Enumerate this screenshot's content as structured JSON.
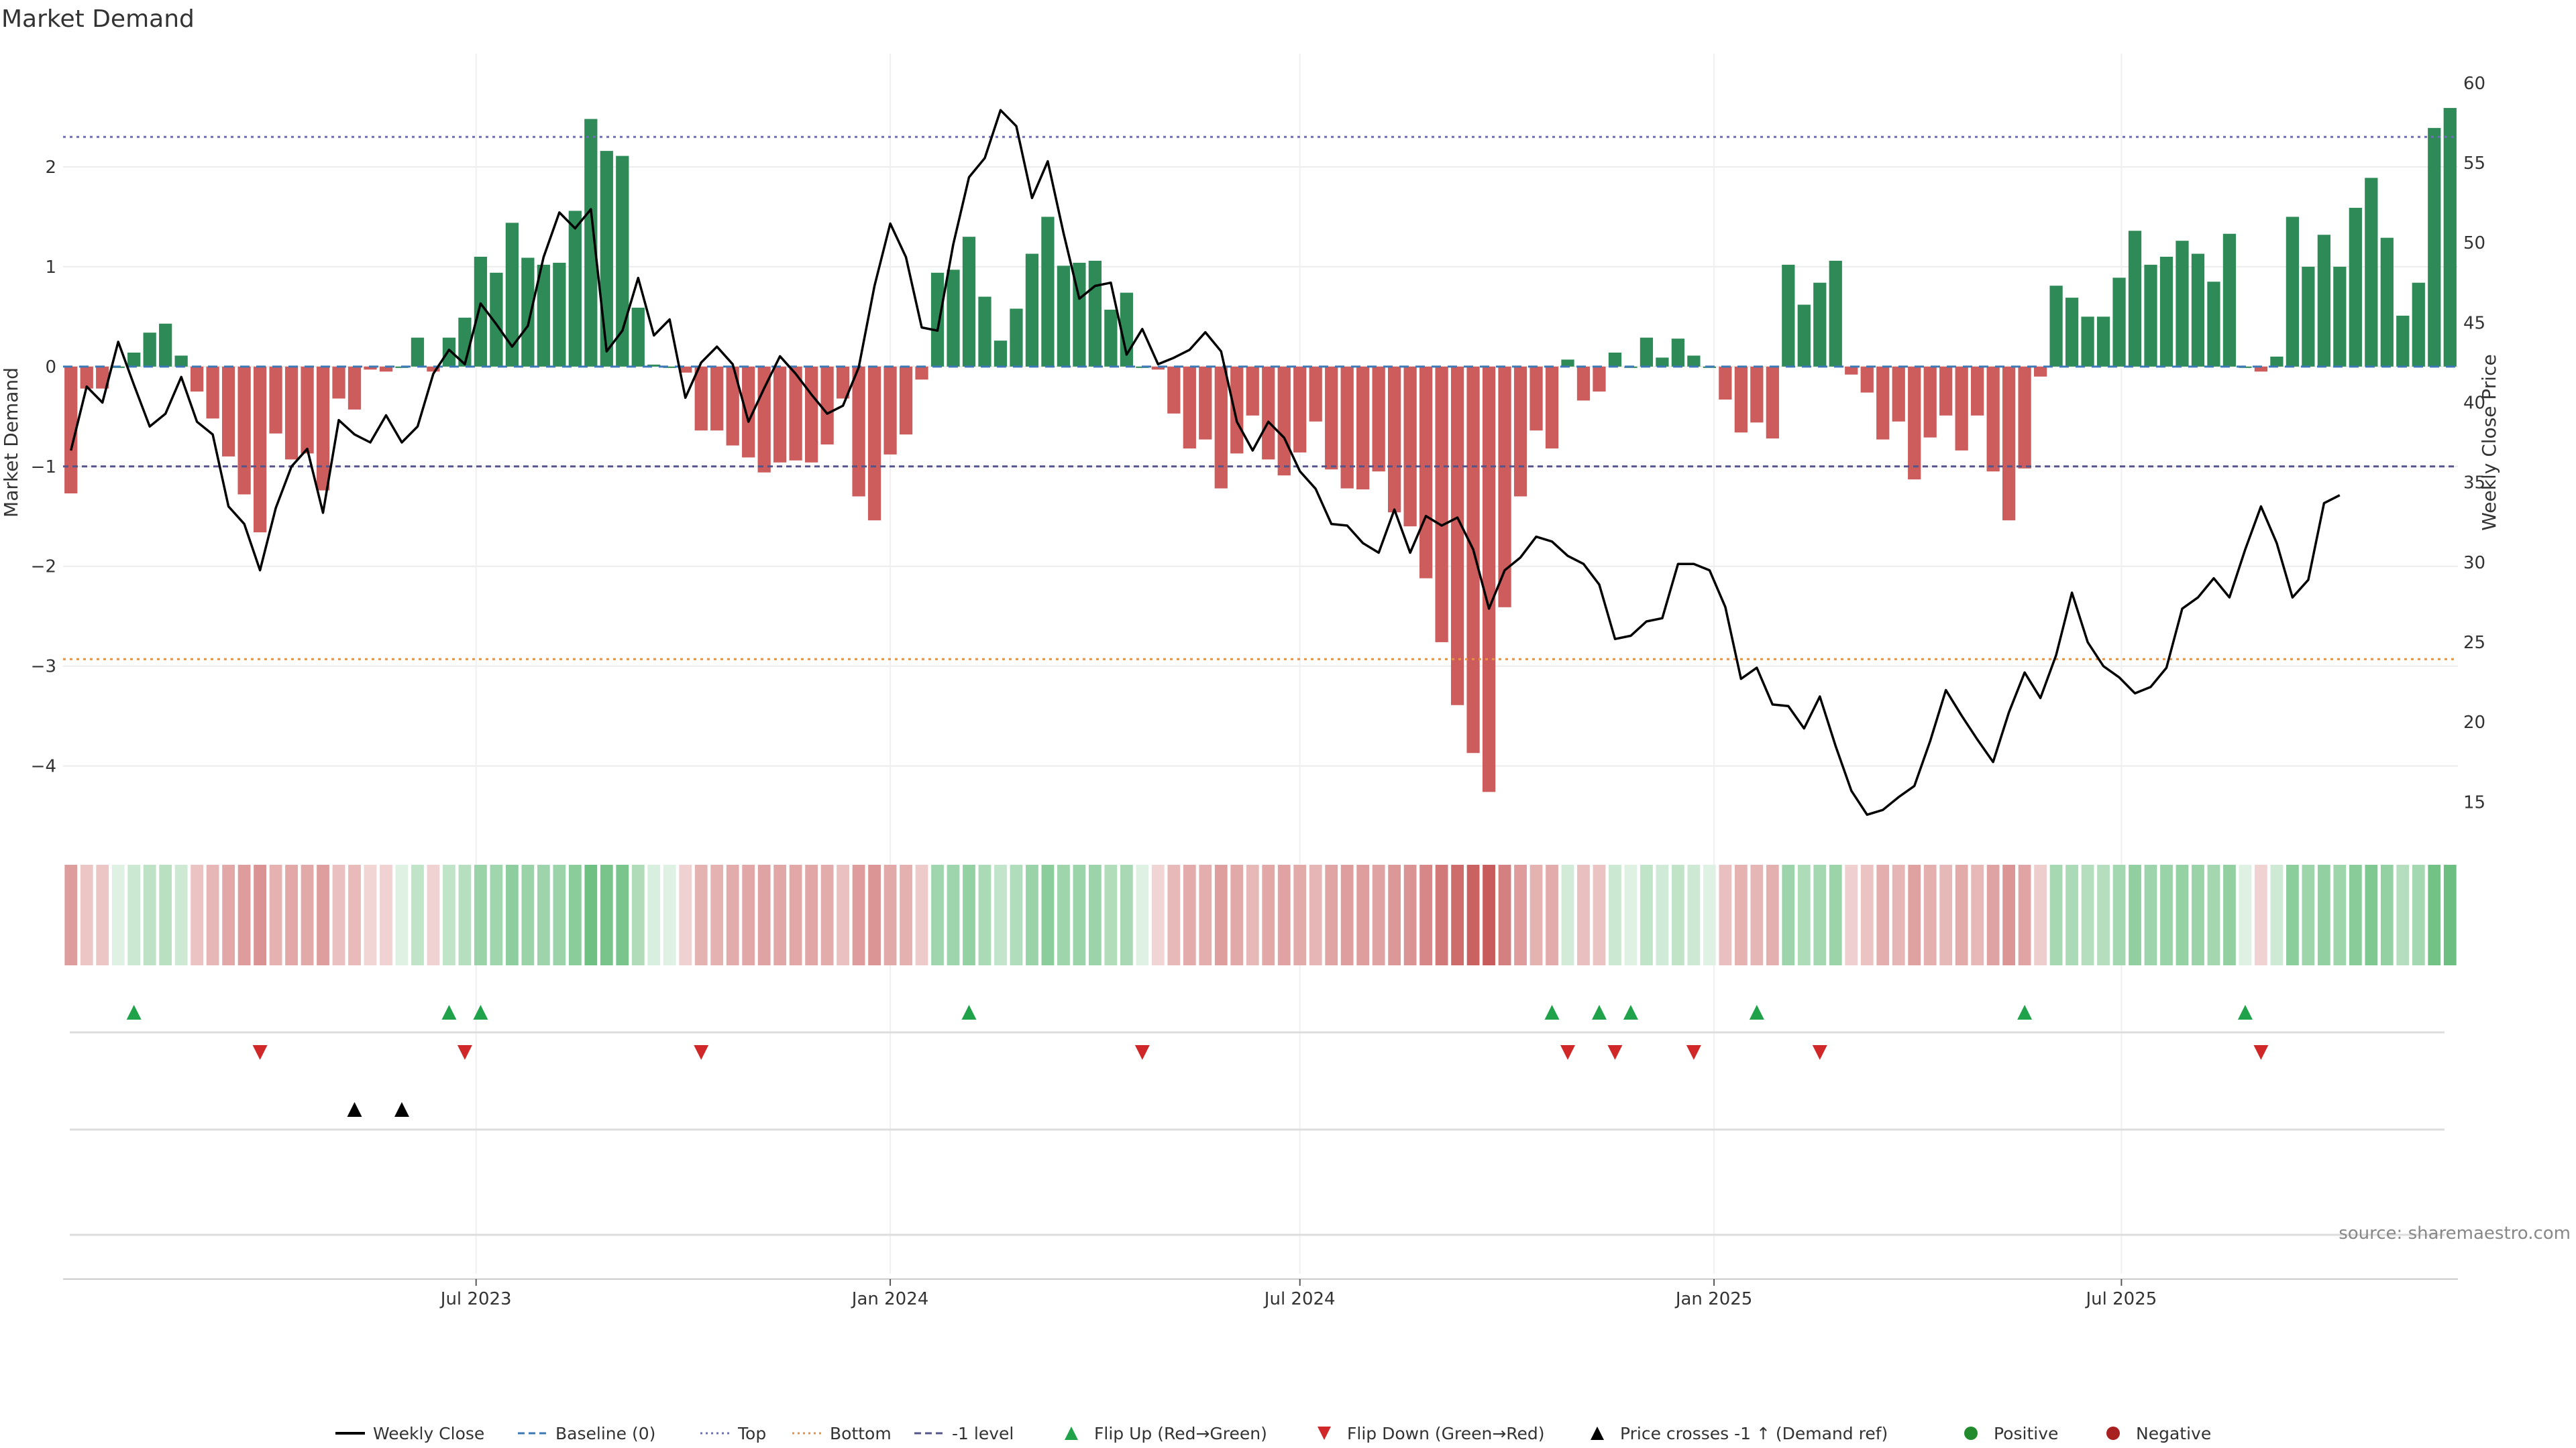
{
  "chart_data": {
    "type": "bar",
    "title": "Market Demand",
    "ylabel": "Market Demand",
    "y2label": "Weekly Close Price",
    "ylim": [
      -4.6,
      3.0
    ],
    "y2lim": [
      13.5,
      61.0
    ],
    "yticks": [
      2,
      1,
      0,
      -1,
      -2,
      -3,
      -4
    ],
    "yticks_text": [
      "2",
      "1",
      "0",
      "−1",
      "−2",
      "−3",
      "−4"
    ],
    "y2ticks": [
      60,
      55,
      50,
      45,
      40,
      35,
      30,
      25,
      20,
      15
    ],
    "x_start": "2023-01-02",
    "x_end": "2025-11-17",
    "x_step_days": 7,
    "xticks": [
      {
        "date": "2023-07-01",
        "label": "Jul 2023"
      },
      {
        "date": "2024-01-01",
        "label": "Jan 2024"
      },
      {
        "date": "2024-07-01",
        "label": "Jul 2024"
      },
      {
        "date": "2025-01-01",
        "label": "Jan 2025"
      },
      {
        "date": "2025-07-01",
        "label": "Jul 2025"
      }
    ],
    "reference_lines": {
      "top": 2.3,
      "bottom": -2.93,
      "minus_one": -1.0,
      "baseline": 0
    },
    "series": [
      {
        "name": "Market Demand",
        "values": [
          -1.27,
          -0.22,
          -0.22,
          0.0,
          0.14,
          0.34,
          0.43,
          0.11,
          -0.25,
          -0.52,
          -0.9,
          -1.28,
          -1.66,
          -0.67,
          -0.93,
          -0.87,
          -1.24,
          -0.32,
          -0.43,
          -0.03,
          -0.05,
          0.0,
          0.29,
          -0.05,
          0.29,
          0.49,
          1.1,
          0.94,
          1.44,
          1.09,
          1.02,
          1.04,
          1.56,
          2.48,
          2.16,
          2.11,
          0.59,
          0.02,
          0.0,
          -0.06,
          -0.64,
          -0.64,
          -0.79,
          -0.91,
          -1.06,
          -0.96,
          -0.94,
          -0.96,
          -0.78,
          -0.32,
          -1.3,
          -1.54,
          -0.88,
          -0.68,
          -0.13,
          0.94,
          0.97,
          1.3,
          0.7,
          0.26,
          0.58,
          1.13,
          1.5,
          1.01,
          1.04,
          1.06,
          0.57,
          0.74,
          0.0,
          -0.03,
          -0.47,
          -0.82,
          -0.73,
          -1.22,
          -0.87,
          -0.49,
          -0.93,
          -1.09,
          -0.86,
          -0.55,
          -1.03,
          -1.22,
          -1.23,
          -1.05,
          -1.46,
          -1.6,
          -2.12,
          -2.76,
          -3.39,
          -3.87,
          -4.26,
          -2.41,
          -1.3,
          -0.64,
          -0.82,
          0.07,
          -0.34,
          -0.25,
          0.14,
          0.0,
          0.29,
          0.09,
          0.28,
          0.11,
          0.0,
          -0.33,
          -0.66,
          -0.56,
          -0.72,
          1.02,
          0.62,
          0.84,
          1.06,
          -0.08,
          -0.26,
          -0.73,
          -0.55,
          -1.13,
          -0.71,
          -0.49,
          -0.84,
          -0.49,
          -1.05,
          -1.54,
          -1.02,
          -0.1,
          0.81,
          0.69,
          0.5,
          0.5,
          0.89,
          1.36,
          1.02,
          1.1,
          1.26,
          1.13,
          0.85,
          1.33,
          0.0,
          -0.05,
          0.1,
          1.5,
          1.0,
          1.32,
          1.0,
          1.59,
          1.89,
          1.29,
          0.51,
          0.84,
          2.39,
          2.59
        ]
      },
      {
        "name": "Weekly Close",
        "axis": "right",
        "values": [
          37,
          41,
          40,
          43.8,
          41.1,
          38.5,
          39.3,
          41.6,
          38.8,
          38,
          33.5,
          32.4,
          29.5,
          33.4,
          36,
          37.1,
          33.1,
          38.9,
          38,
          37.5,
          39.2,
          37.5,
          38.5,
          41.8,
          43.3,
          42.4,
          46.2,
          44.9,
          43.5,
          44.8,
          49.1,
          51.9,
          50.9,
          52.1,
          43.2,
          44.5,
          47.8,
          44.2,
          45.2,
          40.3,
          42.5,
          43.5,
          42.4,
          38.8,
          40.9,
          42.9,
          41.8,
          40.5,
          39.3,
          39.8,
          42.2,
          47.3,
          51.2,
          49.1,
          44.7,
          44.5,
          49.9,
          54.1,
          55.3,
          58.3,
          57.3,
          52.8,
          55.1,
          50.6,
          46.5,
          47.3,
          47.5,
          43,
          44.6,
          42.4,
          42.8,
          43.3,
          44.4,
          43.2,
          38.8,
          37,
          38.8,
          37.8,
          35.7,
          34.6,
          32.4,
          32.3,
          31.2,
          30.6,
          33.3,
          30.6,
          32.9,
          32.3,
          32.8,
          30.8,
          27.1,
          29.5,
          30.3,
          31.6,
          31.3,
          30.4,
          29.9,
          28.6,
          25.2,
          25.4,
          26.3,
          26.5,
          29.9,
          29.9,
          29.5,
          27.2,
          22.7,
          23.4,
          21.1,
          21,
          19.6,
          21.6,
          18.5,
          15.7,
          14.2,
          14.5,
          15.3,
          16,
          18.8,
          22,
          20.4,
          18.9,
          17.5,
          20.6,
          23.1,
          21.5,
          24.2,
          28.1,
          25,
          23.5,
          22.8,
          21.8,
          22.2,
          23.4,
          27.1,
          27.8,
          29,
          27.8,
          30.8,
          33.5,
          31.2,
          27.8,
          28.9,
          33.7,
          34.2
        ]
      }
    ],
    "heat_strip": {
      "description_values": "same as Market Demand"
    },
    "markers": {
      "flip_up": [
        "2023-01-30",
        "2023-06-19",
        "2023-07-03",
        "2024-02-05",
        "2024-10-21",
        "2024-11-11",
        "2024-11-25",
        "2025-01-20",
        "2025-05-19",
        "2025-08-25"
      ],
      "flip_down": [
        "2023-03-27",
        "2023-06-26",
        "2023-10-09",
        "2024-04-22",
        "2024-10-28",
        "2024-11-18",
        "2024-12-23",
        "2025-02-17",
        "2025-09-01"
      ],
      "price_cross": [
        "2023-05-08",
        "2023-05-29"
      ]
    },
    "legend": {
      "placement": "bottom",
      "items": [
        {
          "name": "Weekly Close",
          "kind": "line",
          "color": "#000000"
        },
        {
          "name": "Baseline (0)",
          "kind": "dash",
          "color": "#3b78b5"
        },
        {
          "name": "Top",
          "kind": "dot",
          "color": "#6f6fb5"
        },
        {
          "name": "Bottom",
          "kind": "dot",
          "color": "#e8923f"
        },
        {
          "name": "-1 level",
          "kind": "dash",
          "color": "#55558c"
        },
        {
          "name": "Flip Up (Red→Green)",
          "kind": "tri-up",
          "color": "#1fa24a"
        },
        {
          "name": "Flip Down (Green→Red)",
          "kind": "tri-down",
          "color": "#d02828"
        },
        {
          "name": "Price crosses -1 ↑ (Demand ref)",
          "kind": "tri-up",
          "color": "#000000"
        },
        {
          "name": "Positive",
          "kind": "circle",
          "color": "#228b2e"
        },
        {
          "name": "Negative",
          "kind": "circle",
          "color": "#a82020"
        }
      ]
    },
    "source": "source: sharemaestro.com",
    "colors": {
      "positive": "#2e8b57",
      "negative": "#cd5c5c",
      "line": "#000000"
    }
  }
}
